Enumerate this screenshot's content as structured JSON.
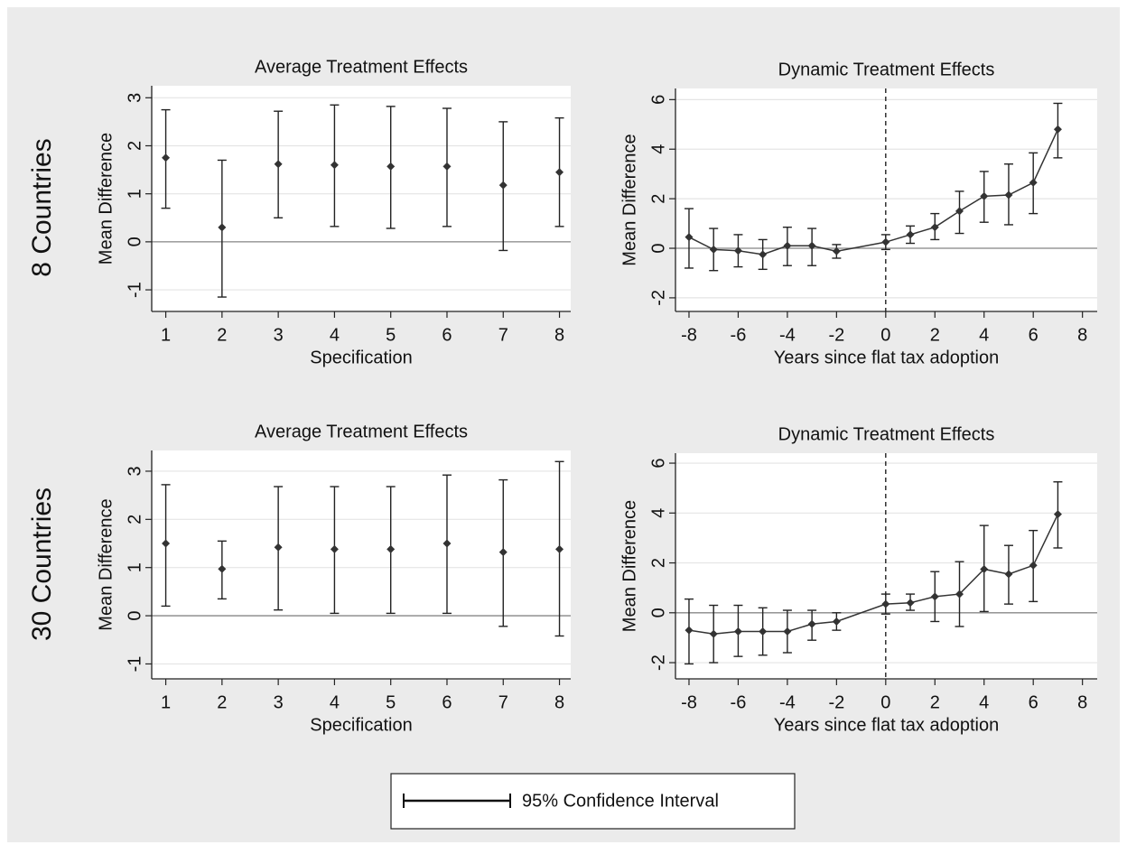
{
  "rows": [
    "8 Countries",
    "30 Countries"
  ],
  "legend": {
    "label": "95% Confidence Interval"
  },
  "chart_data": [
    {
      "type": "errorbar",
      "title": "Average Treatment Effects",
      "x_label": "Specification",
      "y_label": "Mean Difference",
      "x": [
        1,
        2,
        3,
        4,
        5,
        6,
        7,
        8
      ],
      "values": [
        1.75,
        0.3,
        1.62,
        1.6,
        1.57,
        1.57,
        1.18,
        1.45
      ],
      "lower": [
        0.7,
        -1.15,
        0.5,
        0.32,
        0.28,
        0.32,
        -0.18,
        0.32
      ],
      "upper": [
        2.75,
        1.7,
        2.72,
        2.85,
        2.82,
        2.78,
        2.5,
        2.58
      ],
      "xlim": [
        0.75,
        8.2
      ],
      "ylim": [
        -1.45,
        3.25
      ],
      "xticks": [
        1,
        2,
        3,
        4,
        5,
        6,
        7,
        8
      ],
      "yticks": [
        -1,
        0,
        1,
        2,
        3
      ],
      "hline": 0,
      "grid": true,
      "color": "#333333"
    },
    {
      "type": "line",
      "title": "Dynamic Treatment Effects",
      "x_label": "Years since flat tax adoption",
      "y_label": "Mean Difference",
      "x": [
        -8,
        -7,
        -6,
        -5,
        -4,
        -3,
        -2,
        0,
        1,
        2,
        3,
        4,
        5,
        6,
        7
      ],
      "values": [
        0.45,
        -0.05,
        -0.1,
        -0.25,
        0.1,
        0.1,
        -0.12,
        0.25,
        0.55,
        0.85,
        1.5,
        2.1,
        2.15,
        2.65,
        4.8
      ],
      "lower": [
        -0.8,
        -0.9,
        -0.75,
        -0.85,
        -0.7,
        -0.7,
        -0.4,
        -0.05,
        0.2,
        0.35,
        0.6,
        1.05,
        0.95,
        1.4,
        3.65
      ],
      "upper": [
        1.6,
        0.8,
        0.55,
        0.35,
        0.85,
        0.8,
        0.15,
        0.55,
        0.9,
        1.4,
        2.3,
        3.1,
        3.4,
        3.85,
        5.85
      ],
      "xlim": [
        -8.55,
        8.6
      ],
      "ylim": [
        -2.55,
        6.45
      ],
      "xticks": [
        -8,
        -6,
        -4,
        -2,
        0,
        2,
        4,
        6,
        8
      ],
      "yticks": [
        -2,
        0,
        2,
        4,
        6
      ],
      "hline": 0,
      "vline": 0,
      "grid": true,
      "color": "#333333"
    },
    {
      "type": "errorbar",
      "title": "Average Treatment Effects",
      "x_label": "Specification",
      "y_label": "Mean Difference",
      "x": [
        1,
        2,
        3,
        4,
        5,
        6,
        7,
        8
      ],
      "values": [
        1.5,
        0.97,
        1.42,
        1.38,
        1.38,
        1.5,
        1.32,
        1.38
      ],
      "lower": [
        0.2,
        0.35,
        0.12,
        0.05,
        0.05,
        0.05,
        -0.22,
        -0.42
      ],
      "upper": [
        2.72,
        1.55,
        2.68,
        2.68,
        2.68,
        2.92,
        2.82,
        3.2
      ],
      "xlim": [
        0.75,
        8.2
      ],
      "ylim": [
        -1.31,
        3.43
      ],
      "xticks": [
        1,
        2,
        3,
        4,
        5,
        6,
        7,
        8
      ],
      "yticks": [
        -1,
        0,
        1,
        2,
        3
      ],
      "hline": 0,
      "grid": true,
      "color": "#333333"
    },
    {
      "type": "line",
      "title": "Dynamic Treatment Effects",
      "x_label": "Years since flat tax adoption",
      "y_label": "Mean Difference",
      "x": [
        -8,
        -7,
        -6,
        -5,
        -4,
        -3,
        -2,
        0,
        1,
        2,
        3,
        4,
        5,
        6,
        7
      ],
      "values": [
        -0.7,
        -0.85,
        -0.75,
        -0.75,
        -0.75,
        -0.45,
        -0.35,
        0.35,
        0.4,
        0.65,
        0.75,
        1.75,
        1.55,
        1.9,
        3.95
      ],
      "lower": [
        -2.05,
        -2.0,
        -1.75,
        -1.7,
        -1.6,
        -1.1,
        -0.7,
        -0.05,
        0.1,
        -0.35,
        -0.55,
        0.05,
        0.35,
        0.45,
        2.6
      ],
      "upper": [
        0.55,
        0.3,
        0.3,
        0.2,
        0.1,
        0.1,
        0.0,
        0.75,
        0.75,
        1.65,
        2.05,
        3.5,
        2.7,
        3.3,
        5.25
      ],
      "xlim": [
        -8.55,
        8.6
      ],
      "ylim": [
        -2.65,
        6.4
      ],
      "xticks": [
        -8,
        -6,
        -4,
        -2,
        0,
        2,
        4,
        6,
        8
      ],
      "yticks": [
        -2,
        0,
        2,
        4,
        6
      ],
      "hline": 0,
      "vline": 0,
      "grid": true,
      "color": "#333333"
    }
  ]
}
